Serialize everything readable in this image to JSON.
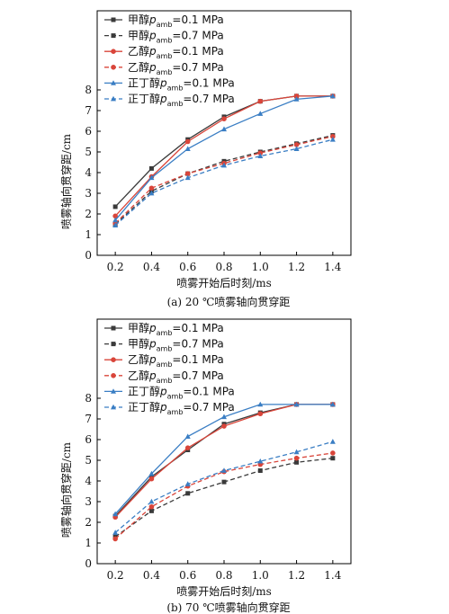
{
  "chart_data": [
    {
      "type": "line",
      "caption": "(a) 20 ℃喷雾轴向贯穿距",
      "xlabel": "喷雾开始后时刻/ms",
      "ylabel": "喷雾轴向贯穿距/cm",
      "xlim": [
        0.1,
        1.5
      ],
      "ylim": [
        0,
        8
      ],
      "xticks": [
        0.2,
        0.4,
        0.6,
        0.8,
        1.0,
        1.2,
        1.4
      ],
      "yticks": [
        0,
        1,
        2,
        3,
        4,
        5,
        6,
        7,
        8
      ],
      "legend_position": "top-left",
      "x": [
        0.2,
        0.4,
        0.6,
        0.8,
        1.0,
        1.2,
        1.4
      ],
      "series": [
        {
          "name": "甲醇",
          "pressure": "=0.1 MPa",
          "color": "#3a3a3a",
          "dash": "solid",
          "marker": "square",
          "values": [
            2.35,
            4.2,
            5.6,
            6.7,
            7.45,
            7.7,
            7.7
          ]
        },
        {
          "name": "甲醇",
          "pressure": "=0.7 MPa",
          "color": "#3a3a3a",
          "dash": "dashed",
          "marker": "square",
          "values": [
            1.5,
            3.1,
            3.95,
            4.55,
            5.0,
            5.4,
            5.8
          ]
        },
        {
          "name": "乙醇",
          "pressure": "=0.1 MPa",
          "color": "#d9453a",
          "dash": "solid",
          "marker": "circle",
          "values": [
            1.9,
            3.8,
            5.5,
            6.6,
            7.45,
            7.7,
            7.7
          ]
        },
        {
          "name": "乙醇",
          "pressure": "=0.7 MPa",
          "color": "#d9453a",
          "dash": "dashed",
          "marker": "circle",
          "values": [
            1.55,
            3.25,
            3.95,
            4.45,
            4.95,
            5.35,
            5.75
          ]
        },
        {
          "name": "正丁醇",
          "pressure": "=0.1 MPa",
          "color": "#3a7ec4",
          "dash": "solid",
          "marker": "triangle",
          "values": [
            1.7,
            3.75,
            5.15,
            6.1,
            6.85,
            7.55,
            7.7
          ]
        },
        {
          "name": "正丁醇",
          "pressure": "=0.7 MPa",
          "color": "#3a7ec4",
          "dash": "dashed",
          "marker": "triangle",
          "values": [
            1.45,
            3.0,
            3.75,
            4.35,
            4.8,
            5.15,
            5.6
          ]
        }
      ]
    },
    {
      "type": "line",
      "caption": "(b) 70 ℃喷雾轴向贯穿距",
      "xlabel": "喷雾开始后时刻/ms",
      "ylabel": "喷雾轴向贯穿距/cm",
      "xlim": [
        0.1,
        1.5
      ],
      "ylim": [
        0,
        8
      ],
      "xticks": [
        0.2,
        0.4,
        0.6,
        0.8,
        1.0,
        1.2,
        1.4
      ],
      "yticks": [
        0,
        1,
        2,
        3,
        4,
        5,
        6,
        7,
        8
      ],
      "legend_position": "top-left",
      "x": [
        0.2,
        0.4,
        0.6,
        0.8,
        1.0,
        1.2,
        1.4
      ],
      "series": [
        {
          "name": "甲醇",
          "pressure": "=0.1 MPa",
          "color": "#3a3a3a",
          "dash": "solid",
          "marker": "square",
          "values": [
            2.3,
            4.2,
            5.5,
            6.75,
            7.3,
            7.7,
            7.7
          ]
        },
        {
          "name": "甲醇",
          "pressure": "=0.7 MPa",
          "color": "#3a3a3a",
          "dash": "dashed",
          "marker": "square",
          "values": [
            1.3,
            2.55,
            3.4,
            3.95,
            4.5,
            4.9,
            5.1
          ]
        },
        {
          "name": "乙醇",
          "pressure": "=0.1 MPa",
          "color": "#d9453a",
          "dash": "solid",
          "marker": "circle",
          "values": [
            2.25,
            4.1,
            5.6,
            6.65,
            7.25,
            7.7,
            7.7
          ]
        },
        {
          "name": "乙醇",
          "pressure": "=0.7 MPa",
          "color": "#d9453a",
          "dash": "dashed",
          "marker": "circle",
          "values": [
            1.2,
            2.75,
            3.75,
            4.45,
            4.8,
            5.1,
            5.35
          ]
        },
        {
          "name": "正丁醇",
          "pressure": "=0.1 MPa",
          "color": "#3a7ec4",
          "dash": "solid",
          "marker": "triangle",
          "values": [
            2.4,
            4.35,
            6.15,
            7.1,
            7.7,
            7.7,
            7.7
          ]
        },
        {
          "name": "正丁醇",
          "pressure": "=0.7 MPa",
          "color": "#3a7ec4",
          "dash": "dashed",
          "marker": "triangle",
          "values": [
            1.5,
            3.0,
            3.85,
            4.5,
            4.95,
            5.4,
            5.9
          ]
        }
      ]
    }
  ]
}
